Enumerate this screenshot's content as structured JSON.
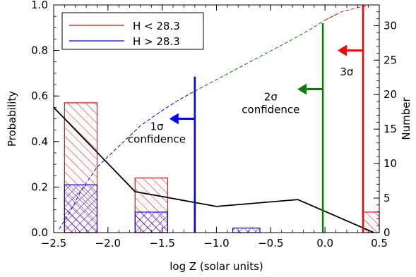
{
  "chart_data": {
    "type": "bar",
    "title": "",
    "xlabel": "log Z (solar units)",
    "ylabel_left": "Probability",
    "ylabel_right": "Number",
    "xlim": [
      -2.5,
      0.5
    ],
    "ylim_left": [
      0.0,
      1.0
    ],
    "ylim_right": [
      0,
      33
    ],
    "x_ticks": [
      -2.5,
      -2.0,
      -1.5,
      -1.0,
      -0.5,
      0.0,
      0.5
    ],
    "x_tick_labels": [
      "−2.5",
      "−2.0",
      "−1.5",
      "−1.0",
      "−0.5",
      "0.0",
      "0.5"
    ],
    "y_left_ticks": [
      0.0,
      0.2,
      0.4,
      0.6,
      0.8,
      1.0
    ],
    "y_left_tick_labels": [
      "0.0",
      "0.2",
      "0.4",
      "0.6",
      "0.8",
      "1.0"
    ],
    "y_right_ticks": [
      0,
      5,
      10,
      15,
      20,
      25,
      30
    ],
    "y_right_tick_labels": [
      "0",
      "5",
      "10",
      "15",
      "20",
      "25",
      "30"
    ],
    "grid": false,
    "legend_position": "top-left",
    "legend": [
      {
        "label": "H < 28.3",
        "color": "#ff0000"
      },
      {
        "label": "H > 28.3",
        "color": "#0000ff"
      }
    ],
    "histograms": [
      {
        "name": "H < 28.3",
        "color": "#ff0000",
        "hatch": "diagonal",
        "bins": [
          {
            "x0": -2.4,
            "x1": -2.1,
            "value": 0.57
          },
          {
            "x0": -1.75,
            "x1": -1.45,
            "value": 0.24
          },
          {
            "x0": -0.6,
            "x1": -0.6,
            "value": 0.0
          },
          {
            "x0": 0.35,
            "x1": 0.5,
            "value": 0.09
          }
        ]
      },
      {
        "name": "H > 28.3",
        "color": "#0000ff",
        "hatch": "cross",
        "bins": [
          {
            "x0": -2.4,
            "x1": -2.1,
            "value": 0.21
          },
          {
            "x0": -1.75,
            "x1": -1.45,
            "value": 0.09
          },
          {
            "x0": -0.85,
            "x1": -0.6,
            "value": 0.02
          }
        ]
      }
    ],
    "probability_line": {
      "color": "#000000",
      "x": [
        -2.5,
        -1.75,
        -1.0,
        -0.25,
        0.45
      ],
      "y": [
        0.55,
        0.18,
        0.115,
        0.145,
        0.0
      ]
    },
    "cumulative_number": {
      "axis": "right",
      "segments": [
        {
          "color": "#0000ff",
          "x": [
            -2.45,
            -2.35,
            -2.25,
            -2.1,
            -1.9,
            -1.7,
            -1.5,
            -1.35,
            -1.2
          ],
          "y": [
            0.5,
            3.0,
            6.0,
            9.5,
            12.5,
            15.5,
            17.7,
            19.2,
            20.5
          ]
        },
        {
          "color": "#008000",
          "x": [
            -1.2,
            -0.9,
            -0.6,
            -0.3,
            -0.1,
            0.0,
            0.1
          ],
          "y": [
            20.5,
            23.0,
            25.5,
            28.0,
            29.8,
            30.8,
            31.6
          ]
        },
        {
          "color": "#ff0000",
          "x": [
            0.0,
            0.15,
            0.3,
            0.38
          ],
          "y": [
            30.8,
            32.0,
            32.6,
            32.8
          ]
        }
      ]
    },
    "confidence_limits": [
      {
        "label": "1σ confidence",
        "color": "#0000ff",
        "x": -1.2,
        "y_top": 0.685,
        "arrow_y": 0.5,
        "label_pos": [
          -1.55,
          0.45
        ]
      },
      {
        "label": "2σ confidence",
        "color": "#008000",
        "x": -0.02,
        "y_top": 0.92,
        "arrow_y": 0.63,
        "label_pos": [
          -0.5,
          0.58
        ]
      },
      {
        "label": "3σ",
        "color": "#ff0000",
        "x": 0.35,
        "y_top": 1.0,
        "arrow_y": 0.8,
        "label_pos": [
          0.2,
          0.69
        ]
      }
    ]
  }
}
